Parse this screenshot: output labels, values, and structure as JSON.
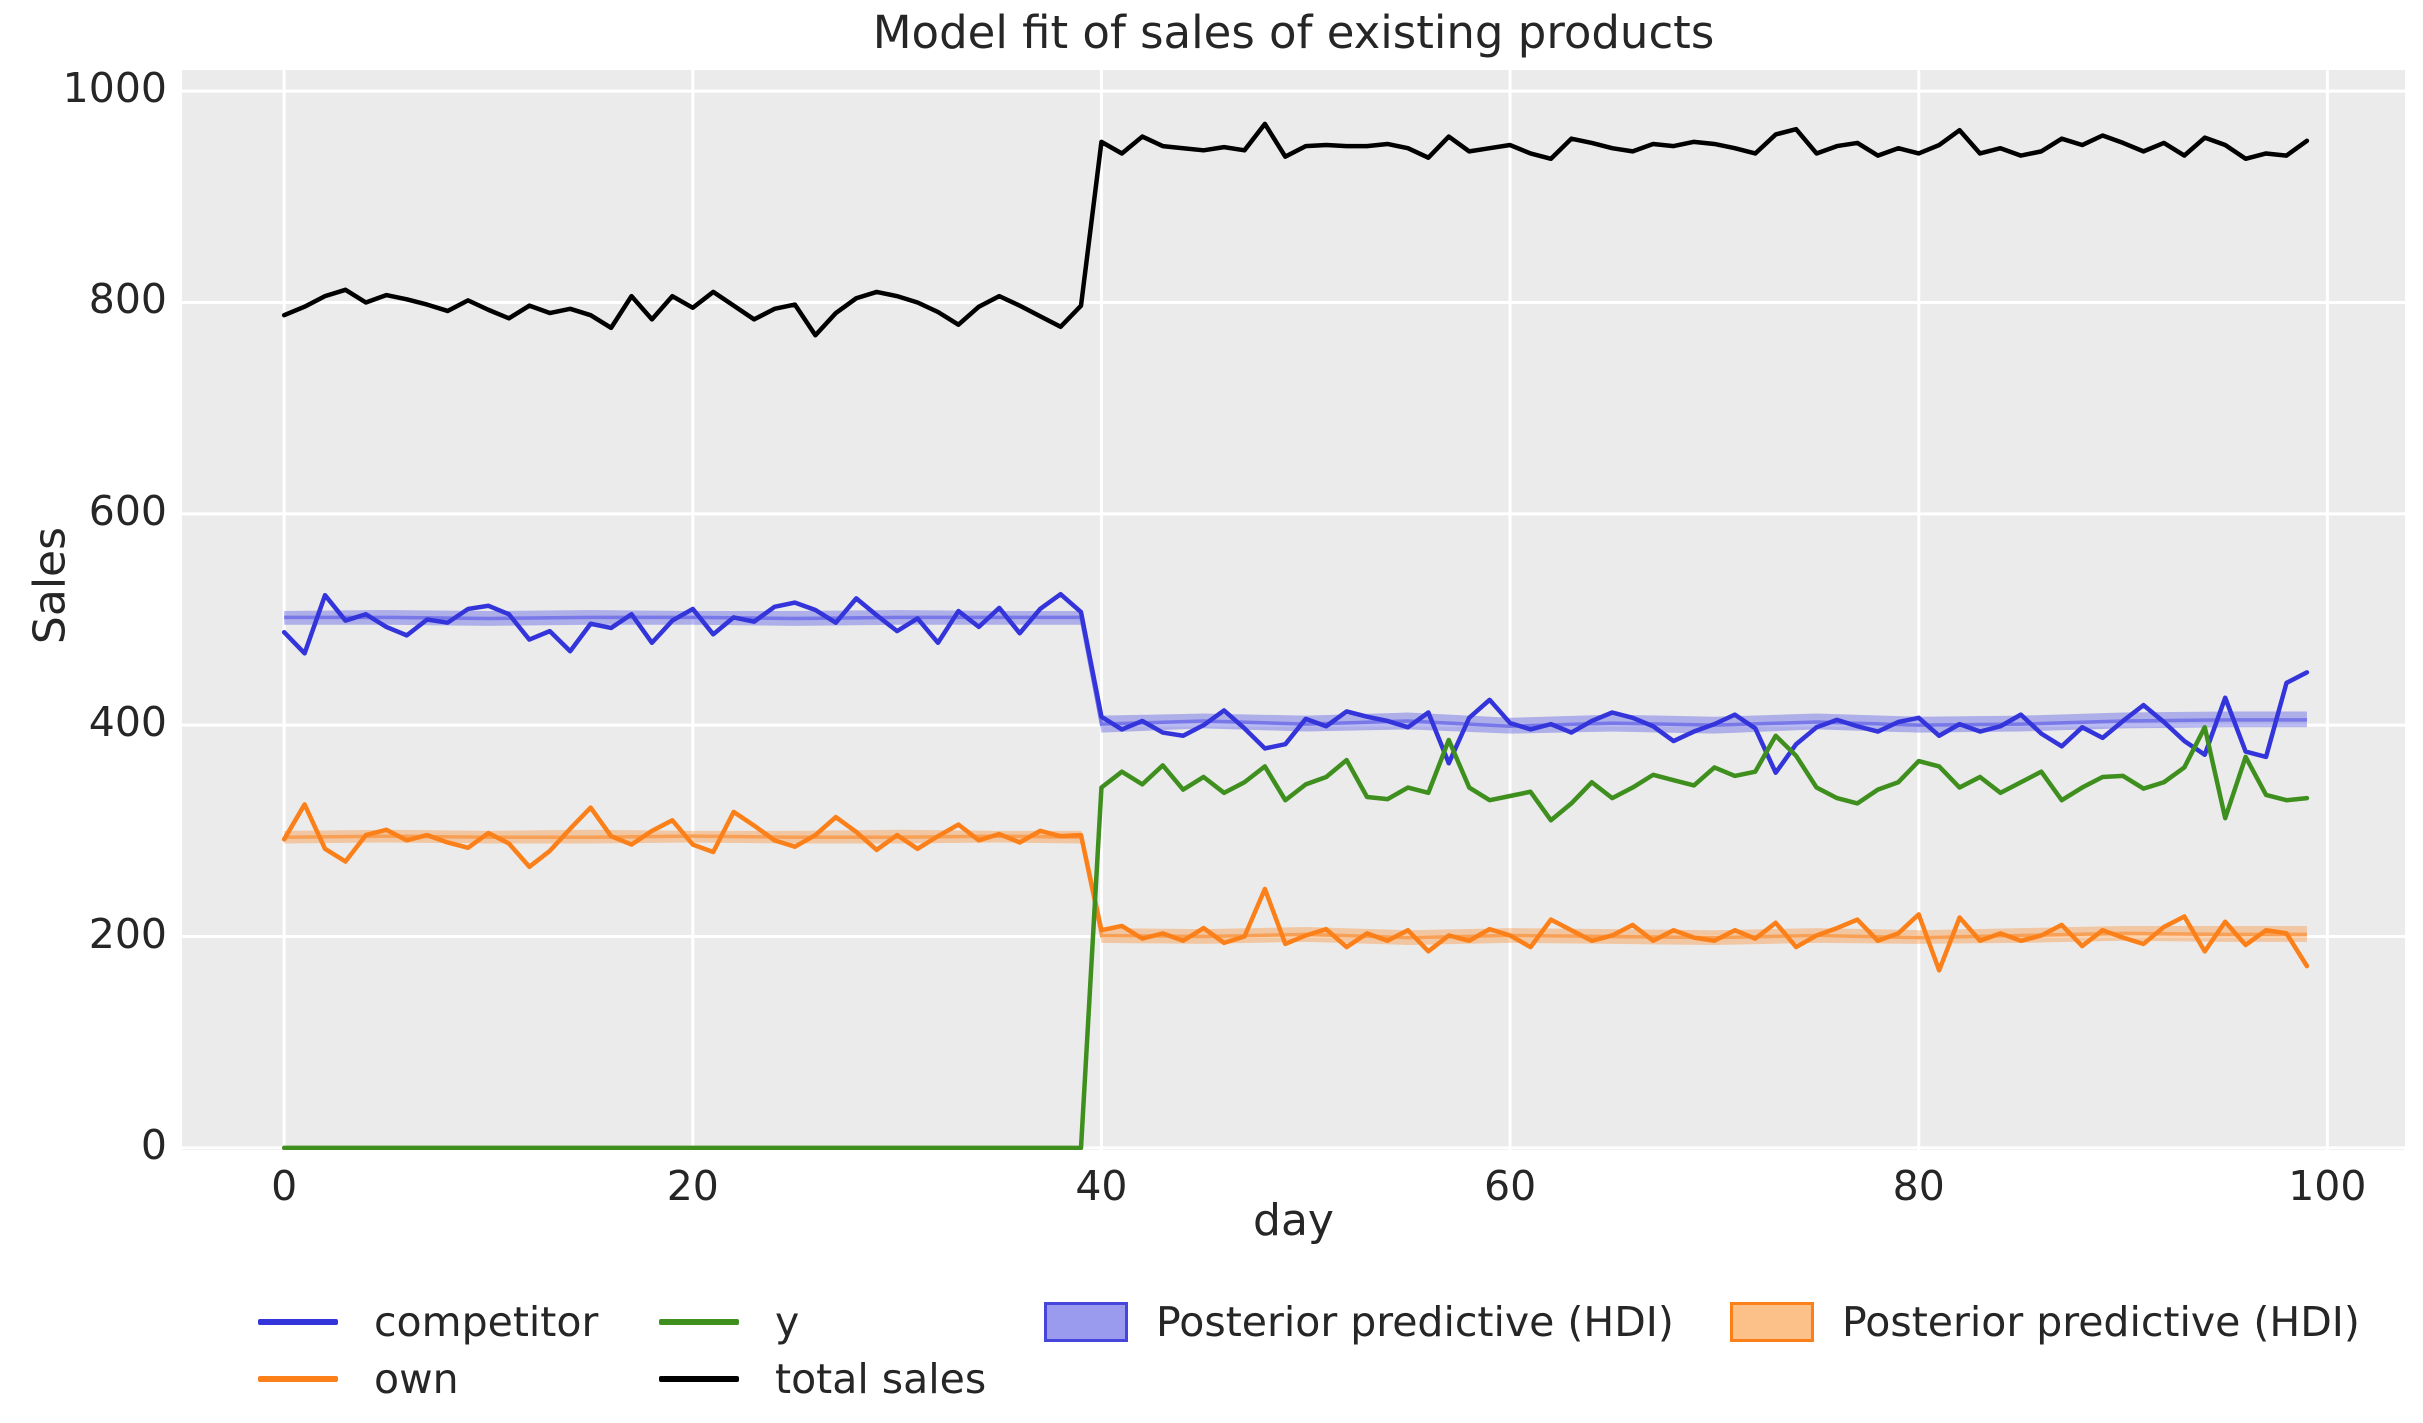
{
  "title": "Model fit of sales of existing products",
  "axes": {
    "xlabel": "day",
    "ylabel": "Sales",
    "x_ticks": [
      0,
      20,
      40,
      60,
      80,
      100
    ],
    "y_ticks": [
      0,
      200,
      400,
      600,
      800,
      1000
    ]
  },
  "legend": {
    "items": [
      {
        "type": "line",
        "label": "competitor",
        "color": "#3434db"
      },
      {
        "type": "line",
        "label": "own",
        "color": "#fb8019"
      },
      {
        "type": "line",
        "label": "y",
        "color": "#3f8f1f"
      },
      {
        "type": "line",
        "label": "total sales",
        "color": "#000000"
      },
      {
        "type": "patch",
        "label": "Posterior predictive (HDI)",
        "color": "#4646dd",
        "fill": "#9a9aef"
      },
      {
        "type": "patch",
        "label": "Posterior predictive (HDI)",
        "color": "#fb8019",
        "fill": "#fcc089"
      }
    ]
  },
  "chart_data": {
    "type": "line",
    "title": "Model fit of sales of existing products",
    "xlabel": "day",
    "ylabel": "Sales",
    "xlim": [
      -5,
      103.8
    ],
    "ylim": [
      -2,
      1020
    ],
    "grid": true,
    "background": "#ebebeb",
    "grid_color": "#ffffff",
    "x": [
      0,
      1,
      2,
      3,
      4,
      5,
      6,
      7,
      8,
      9,
      10,
      11,
      12,
      13,
      14,
      15,
      16,
      17,
      18,
      19,
      20,
      21,
      22,
      23,
      24,
      25,
      26,
      27,
      28,
      29,
      30,
      31,
      32,
      33,
      34,
      35,
      36,
      37,
      38,
      39,
      40,
      41,
      42,
      43,
      44,
      45,
      46,
      47,
      48,
      49,
      50,
      51,
      52,
      53,
      54,
      55,
      56,
      57,
      58,
      59,
      60,
      61,
      62,
      63,
      64,
      65,
      66,
      67,
      68,
      69,
      70,
      71,
      72,
      73,
      74,
      75,
      76,
      77,
      78,
      79,
      80,
      81,
      82,
      83,
      84,
      85,
      86,
      87,
      88,
      89,
      90,
      91,
      92,
      93,
      94,
      95,
      96,
      97,
      98,
      99
    ],
    "series": [
      {
        "name": "competitor",
        "color": "#3434db",
        "values": [
          488,
          468,
          523,
          499,
          505,
          493,
          485,
          500,
          497,
          510,
          513,
          505,
          481,
          489,
          470,
          496,
          492,
          505,
          478,
          499,
          510,
          486,
          502,
          498,
          512,
          516,
          509,
          497,
          520,
          504,
          489,
          501,
          478,
          508,
          493,
          511,
          487,
          510,
          524,
          507,
          408,
          396,
          404,
          393,
          390,
          400,
          414,
          397,
          378,
          382,
          406,
          399,
          413,
          408,
          404,
          398,
          412,
          364,
          407,
          424,
          402,
          396,
          401,
          393,
          404,
          412,
          407,
          399,
          385,
          394,
          401,
          410,
          397,
          355,
          382,
          398,
          405,
          399,
          394,
          403,
          407,
          390,
          401,
          394,
          399,
          410,
          392,
          380,
          398,
          388,
          404,
          419,
          403,
          385,
          372,
          426,
          375,
          370,
          440,
          450
        ]
      },
      {
        "name": "own",
        "color": "#fb8019",
        "values": [
          292,
          325,
          283,
          271,
          296,
          301,
          291,
          296,
          289,
          284,
          298,
          288,
          266,
          281,
          302,
          322,
          295,
          287,
          300,
          310,
          287,
          280,
          318,
          305,
          291,
          285,
          296,
          313,
          299,
          282,
          296,
          283,
          295,
          306,
          291,
          297,
          289,
          300,
          295,
          296,
          206,
          210,
          198,
          203,
          196,
          208,
          194,
          200,
          245,
          193,
          201,
          207,
          190,
          203,
          196,
          206,
          186,
          201,
          196,
          207,
          201,
          190,
          216,
          206,
          196,
          201,
          211,
          196,
          206,
          199,
          196,
          206,
          198,
          213,
          190,
          201,
          208,
          216,
          196,
          203,
          221,
          168,
          218,
          196,
          203,
          196,
          201,
          211,
          191,
          206,
          199,
          193,
          209,
          219,
          186,
          214,
          192,
          206,
          203,
          172
        ]
      },
      {
        "name": "y",
        "color": "#3f8f1f",
        "values": [
          0,
          0,
          0,
          0,
          0,
          0,
          0,
          0,
          0,
          0,
          0,
          0,
          0,
          0,
          0,
          0,
          0,
          0,
          0,
          0,
          0,
          0,
          0,
          0,
          0,
          0,
          0,
          0,
          0,
          0,
          0,
          0,
          0,
          0,
          0,
          0,
          0,
          0,
          0,
          0,
          341,
          356,
          344,
          362,
          339,
          351,
          336,
          346,
          361,
          329,
          344,
          351,
          367,
          332,
          330,
          341,
          336,
          386,
          341,
          329,
          333,
          337,
          310,
          326,
          346,
          331,
          341,
          353,
          348,
          343,
          360,
          352,
          356,
          390,
          371,
          341,
          331,
          326,
          339,
          346,
          366,
          361,
          341,
          351,
          336,
          346,
          356,
          329,
          341,
          351,
          352,
          340,
          346,
          360,
          398,
          312,
          370,
          334,
          329,
          331
        ]
      },
      {
        "name": "total sales",
        "color": "#000000",
        "values": [
          788,
          796,
          806,
          812,
          800,
          807,
          803,
          798,
          792,
          802,
          793,
          785,
          797,
          790,
          794,
          788,
          776,
          806,
          784,
          806,
          795,
          810,
          797,
          784,
          794,
          798,
          769,
          790,
          804,
          810,
          806,
          800,
          791,
          779,
          796,
          806,
          797,
          787,
          777,
          797,
          952,
          941,
          957,
          948,
          946,
          944,
          947,
          944,
          969,
          938,
          948,
          949,
          948,
          948,
          950,
          946,
          937,
          957,
          943,
          946,
          949,
          941,
          936,
          955,
          951,
          946,
          943,
          950,
          948,
          952,
          950,
          946,
          941,
          959,
          964,
          941,
          948,
          951,
          939,
          946,
          941,
          949,
          963,
          941,
          946,
          939,
          943,
          955,
          949,
          958,
          951,
          943,
          951,
          939,
          956,
          949,
          936,
          941,
          939,
          953
        ]
      }
    ],
    "hdi_bands": [
      {
        "name": "Posterior predictive (HDI)",
        "color": "#5a5ae6",
        "mean_color": "#7878e8",
        "fill_opacity": 0.42,
        "x": [
          0,
          5,
          10,
          15,
          20,
          25,
          30,
          35,
          39,
          40,
          45,
          50,
          55,
          60,
          65,
          70,
          75,
          80,
          85,
          90,
          95,
          99
        ],
        "lo": [
          495,
          495,
          494,
          495,
          495,
          494,
          495,
          495,
          495,
          393,
          397,
          394,
          396,
          392,
          394,
          392,
          396,
          393,
          394,
          397,
          398,
          398
        ],
        "hi": [
          508,
          509,
          508,
          509,
          508,
          508,
          509,
          508,
          508,
          409,
          411,
          409,
          412,
          407,
          410,
          408,
          411,
          408,
          409,
          412,
          413,
          413
        ],
        "mean": [
          502,
          502,
          501,
          502,
          502,
          501,
          502,
          502,
          502,
          401,
          404,
          401,
          404,
          399,
          402,
          400,
          403,
          400,
          401,
          404,
          405,
          405
        ]
      },
      {
        "name": "Posterior predictive (HDI)",
        "color": "#fb8019",
        "mean_color": "#f8a055",
        "fill_opacity": 0.35,
        "x": [
          0,
          5,
          10,
          15,
          20,
          25,
          30,
          35,
          39,
          40,
          45,
          50,
          55,
          60,
          65,
          70,
          75,
          80,
          85,
          90,
          95,
          99
        ],
        "lo": [
          288,
          289,
          288,
          288,
          289,
          288,
          288,
          289,
          288,
          194,
          193,
          195,
          192,
          194,
          193,
          192,
          194,
          193,
          194,
          196,
          195,
          195
        ],
        "hi": [
          300,
          301,
          300,
          301,
          300,
          300,
          301,
          300,
          300,
          208,
          207,
          209,
          206,
          208,
          207,
          206,
          208,
          206,
          208,
          210,
          210,
          210
        ],
        "mean": [
          294,
          295,
          294,
          294,
          295,
          294,
          294,
          295,
          294,
          201,
          200,
          202,
          199,
          201,
          200,
          199,
          201,
          199,
          201,
          203,
          202,
          202
        ]
      }
    ]
  }
}
